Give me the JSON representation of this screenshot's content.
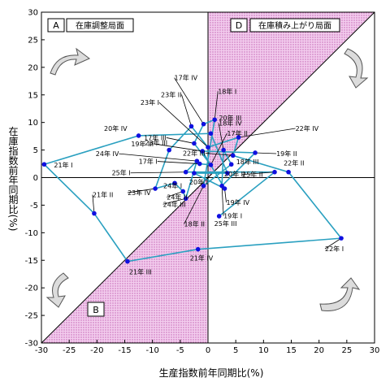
{
  "chart_data": {
    "type": "scatter",
    "xlabel": "生産指数前年同期比(%)",
    "ylabel": "在庫指数前年同期比(%)",
    "xlim": [
      -30,
      30
    ],
    "ylim": [
      -30,
      30
    ],
    "x_ticks": [
      -30,
      -25,
      -20,
      -15,
      -10,
      -5,
      0,
      5,
      10,
      15,
      20,
      25,
      30
    ],
    "y_ticks": [
      -30,
      -25,
      -20,
      -15,
      -10,
      -5,
      0,
      5,
      10,
      15,
      20,
      25,
      30
    ],
    "phase_labels": {
      "A": "在庫調整局面",
      "B": "",
      "D": "在庫積み上がり局面"
    },
    "letters": {
      "A": "A",
      "B": "B",
      "D": "D"
    },
    "line_color": "#2aa0c0",
    "point_color": "#1010e0",
    "shade_color": "#e6a9e0",
    "points": [
      {
        "label": "17年 I",
        "x": -1.5,
        "y": 2.5
      },
      {
        "label": "17年 II",
        "x": 0.5,
        "y": 2.3
      },
      {
        "label": "17年 III",
        "x": -2.5,
        "y": 6.2
      },
      {
        "label": "17年 IV",
        "x": -0.8,
        "y": 9.7
      },
      {
        "label": "18年 I",
        "x": 1.2,
        "y": 10.5
      },
      {
        "label": "18年 II",
        "x": -0.8,
        "y": -1.5
      },
      {
        "label": "18年 III",
        "x": 4.2,
        "y": 2.4
      },
      {
        "label": "18年 IV",
        "x": 2.8,
        "y": 5.0
      },
      {
        "label": "19年 I",
        "x": 2.5,
        "y": -1.5
      },
      {
        "label": "19年 II",
        "x": 8.5,
        "y": 4.5
      },
      {
        "label": "19年 III",
        "x": -1.0,
        "y": 4.8
      },
      {
        "label": "19年 IV",
        "x": 3.0,
        "y": -2.0
      },
      {
        "label": "20年 I",
        "x": -2.5,
        "y": 0.8
      },
      {
        "label": "20年 II",
        "x": 3.5,
        "y": 0.8
      },
      {
        "label": "20年 III",
        "x": 0.5,
        "y": 8.0
      },
      {
        "label": "20年 IV",
        "x": -12.5,
        "y": 7.6
      },
      {
        "label": "21年 I",
        "x": -29.5,
        "y": 2.4
      },
      {
        "label": "21年 II",
        "x": -20.5,
        "y": -6.5
      },
      {
        "label": "21年 III",
        "x": -14.5,
        "y": -15.2
      },
      {
        "label": "21年 IV",
        "x": -1.8,
        "y": -13.0
      },
      {
        "label": "22年 I",
        "x": 24.0,
        "y": -11.0
      },
      {
        "label": "22年 II",
        "x": 14.5,
        "y": 1.0
      },
      {
        "label": "22年 III",
        "x": 4.5,
        "y": 4.0
      },
      {
        "label": "22年 IV",
        "x": 5.5,
        "y": 7.3
      },
      {
        "label": "23年 I",
        "x": 0.0,
        "y": 5.5
      },
      {
        "label": "23年 II",
        "x": -3.0,
        "y": 9.3
      },
      {
        "label": "23年 III",
        "x": -7.0,
        "y": 5.0
      },
      {
        "label": "23年 IV",
        "x": -9.5,
        "y": -2.0
      },
      {
        "label": "24年 I",
        "x": -6.0,
        "y": -1.0
      },
      {
        "label": "24年 II",
        "x": -4.5,
        "y": -2.5
      },
      {
        "label": "24年 III",
        "x": -4.0,
        "y": -3.8
      },
      {
        "label": "24年 IV",
        "x": -2.0,
        "y": 3.0
      },
      {
        "label": "25年 I",
        "x": -4.0,
        "y": 1.0
      },
      {
        "label": "25年 II",
        "x": 12.0,
        "y": 1.0
      },
      {
        "label": "25年 III",
        "x": 2.0,
        "y": -7.0
      }
    ]
  }
}
